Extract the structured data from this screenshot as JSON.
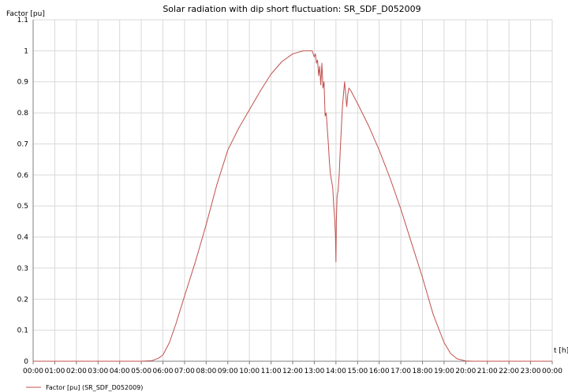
{
  "colors": {
    "series": "#c0504d",
    "grid": "#d9d9d9",
    "axis": "#808080",
    "background": "#ffffff"
  },
  "chart_data": {
    "type": "line",
    "title": "Solar radiation with dip short fluctuation: SR_SDF_D052009",
    "ylabel": "Factor [pu]",
    "xlabel": "t [h]",
    "xlim": [
      0,
      24
    ],
    "ylim": [
      0,
      1.1
    ],
    "grid": true,
    "legend_position": "bottom-left",
    "yticks": [
      "0",
      "0.1",
      "0.2",
      "0.3",
      "0.4",
      "0.5",
      "0.6",
      "0.7",
      "0.8",
      "0.9",
      "1",
      "1.1"
    ],
    "xticks": [
      "00:00",
      "01:00",
      "02:00",
      "03:00",
      "04:00",
      "05:00",
      "06:00",
      "07:00",
      "08:00",
      "09:00",
      "10:00",
      "11:00",
      "12:00",
      "13:00",
      "14:00",
      "15:00",
      "16:00",
      "17:00",
      "18:00",
      "19:00",
      "20:00",
      "21:00",
      "22:00",
      "23:00",
      "00:00"
    ],
    "series": [
      {
        "name": "Factor [pu] (SR_SDF_D052009)",
        "x": [
          0,
          5.0,
          5.5,
          5.8,
          6.0,
          6.3,
          6.6,
          7.0,
          7.5,
          8.0,
          8.5,
          9.0,
          9.5,
          10.0,
          10.5,
          11.0,
          11.5,
          12.0,
          12.5,
          12.9,
          13.0,
          13.05,
          13.1,
          13.15,
          13.2,
          13.25,
          13.3,
          13.35,
          13.4,
          13.45,
          13.5,
          13.55,
          13.6,
          13.65,
          13.7,
          13.75,
          13.8,
          13.85,
          13.9,
          13.95,
          13.98,
          14.0,
          14.02,
          14.05,
          14.1,
          14.15,
          14.2,
          14.25,
          14.3,
          14.35,
          14.4,
          14.45,
          14.5,
          14.55,
          14.6,
          14.7,
          15.0,
          15.5,
          16.0,
          16.5,
          17.0,
          17.5,
          18.0,
          18.5,
          19.0,
          19.3,
          19.6,
          20.0,
          20.3,
          24
        ],
        "y": [
          0,
          0,
          0.002,
          0.01,
          0.02,
          0.06,
          0.12,
          0.21,
          0.32,
          0.44,
          0.57,
          0.68,
          0.75,
          0.81,
          0.87,
          0.925,
          0.965,
          0.99,
          1.0,
          1.0,
          0.98,
          0.99,
          0.96,
          0.97,
          0.92,
          0.95,
          0.89,
          0.96,
          0.88,
          0.9,
          0.79,
          0.8,
          0.75,
          0.7,
          0.64,
          0.6,
          0.58,
          0.56,
          0.5,
          0.45,
          0.4,
          0.32,
          0.45,
          0.53,
          0.55,
          0.6,
          0.68,
          0.75,
          0.82,
          0.86,
          0.9,
          0.86,
          0.82,
          0.86,
          0.88,
          0.87,
          0.83,
          0.76,
          0.68,
          0.59,
          0.49,
          0.38,
          0.27,
          0.15,
          0.06,
          0.025,
          0.008,
          0.001,
          0,
          0
        ]
      }
    ]
  }
}
